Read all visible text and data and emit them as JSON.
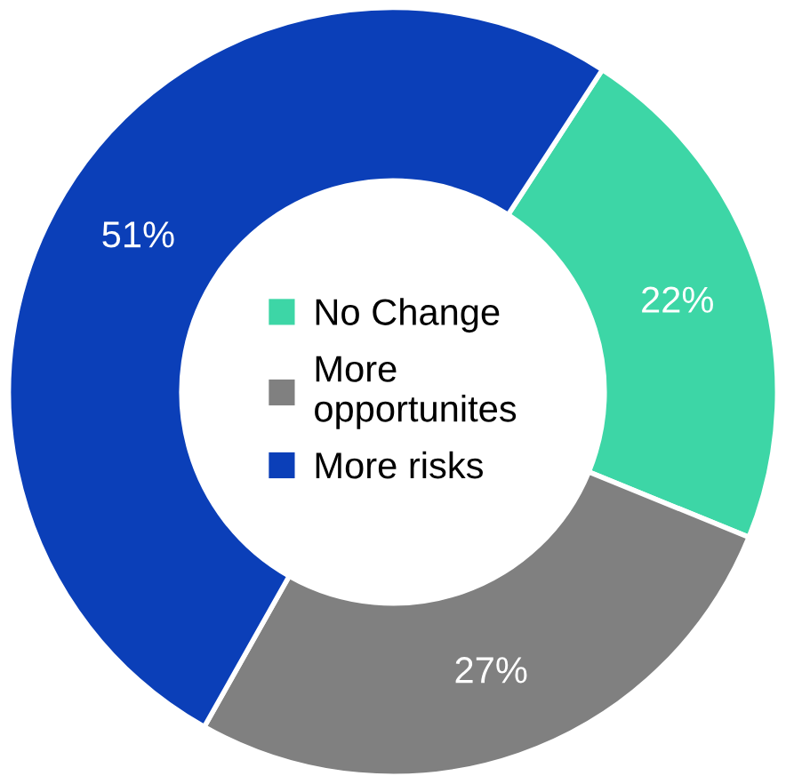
{
  "chart_data": {
    "type": "donut",
    "categories": [
      "No Change",
      "More\nopportunites",
      "More risks"
    ],
    "values": [
      22,
      27,
      51
    ],
    "colors": [
      "#3dd6a6",
      "#808080",
      "#0b3fb8"
    ],
    "value_labels": [
      "22%",
      "27%",
      "51%"
    ],
    "legend": "center"
  }
}
